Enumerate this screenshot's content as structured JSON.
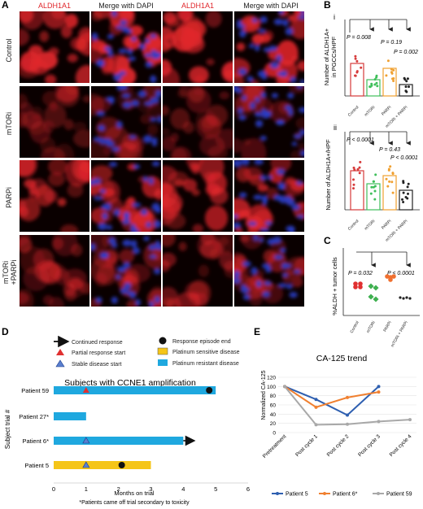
{
  "panel_letters": {
    "A": "A",
    "B": "B",
    "C": "C",
    "D": "D",
    "E": "E"
  },
  "panelA": {
    "col_headers": [
      "ALDH1A1",
      "Merge with DAPI",
      "ALDH1A1",
      "Merge with DAPI"
    ],
    "row_labels": [
      "Control",
      "mTORi",
      "PARPi",
      "mTORi",
      "+PARPi"
    ],
    "colors": {
      "red": "#e0262b",
      "blue": "#2a3fcc",
      "black": "#0a0000"
    }
  },
  "panelB": {
    "sub_i": "i",
    "sub_ii": "ii",
    "ylabel_i_1": "Number of  ALDH1A+",
    "ylabel_i_2": "in PGCCs/HPF",
    "ylabel_ii": "Number of  ALDH1A+/HPF",
    "categories": [
      "Control",
      "mTORi",
      "PARPi",
      "mTORi + PARPi"
    ],
    "pvals_i": [
      "P = 0.008",
      "P = 0.19",
      "P = 0.002"
    ],
    "pvals_ii": [
      "P < 0.0001",
      "P = 0.43",
      "P < 0.0001"
    ],
    "colors": [
      "#d63a3a",
      "#3fbf5a",
      "#f0a030",
      "#222222"
    ]
  },
  "panelC": {
    "ylabel": "%ALDH + tumor cells",
    "categories": [
      "Control",
      "mTORi",
      "PARPi",
      "mTORi + PARPi"
    ],
    "pvals": [
      "P = 0.032",
      "P < 0.0001"
    ],
    "colors": [
      "#e03030",
      "#3fb050",
      "#f07030",
      "#222222"
    ]
  },
  "legendD": {
    "continued": "Continued response",
    "partial": "Partial response start",
    "stable": "Stable disease start",
    "episode_end": "Response episode end",
    "sensitive": "Platinum sensitive disease",
    "resistant": "Platinum resistant disease",
    "sensitive_color": "#f5c518",
    "resistant_color": "#1fa8df"
  },
  "chart_data": [
    {
      "type": "bar",
      "title": "Subjects with CCNE1 amplification",
      "xlabel": "Months on trial",
      "ylabel": "Subject trial #",
      "xlim": [
        0,
        6
      ],
      "xticks": [
        "0",
        "1",
        "2",
        "3",
        "4",
        "5",
        "6"
      ],
      "footnote": "*Patients came off trial secondary to toxicity",
      "subjects": [
        {
          "name": "Patient 59",
          "end": 5.0,
          "disease": "resistant",
          "partial_start": 1.0,
          "episode_end": 4.8
        },
        {
          "name": "Patient 27*",
          "end": 1.0,
          "disease": "resistant"
        },
        {
          "name": "Patient 6*",
          "end": 4.0,
          "disease": "resistant",
          "stable_start": 1.0,
          "continued": true
        },
        {
          "name": "Patient 5",
          "end": 3.0,
          "disease": "sensitive",
          "stable_start": 1.0,
          "episode_end": 2.1
        }
      ]
    },
    {
      "type": "line",
      "title": "CA-125 trend",
      "ylabel": "Normalized CA-125",
      "ylim": [
        0,
        120
      ],
      "yticks": [
        "0",
        "20",
        "40",
        "60",
        "80",
        "100",
        "120"
      ],
      "categories": [
        "Pretreatment",
        "Post cycle 1",
        "Post cycle 2",
        "Post cycle 3",
        "Post cycle 4"
      ],
      "series": [
        {
          "name": "Patient 5",
          "color": "#2e5fb0",
          "values": [
            100,
            72,
            38,
            100,
            null
          ]
        },
        {
          "name": "Patient 6*",
          "color": "#f08030",
          "values": [
            100,
            55,
            76,
            88,
            null
          ]
        },
        {
          "name": "Patient 59",
          "color": "#a8a8a8",
          "values": [
            100,
            17,
            18,
            24,
            28
          ]
        }
      ],
      "legend": "bottom"
    }
  ]
}
